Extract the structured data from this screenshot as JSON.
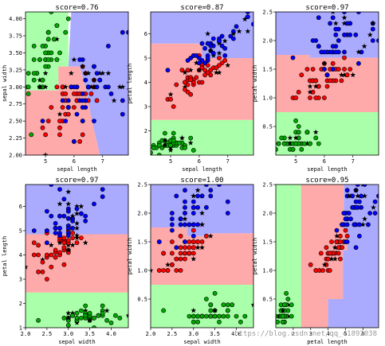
{
  "figure_title": "",
  "watermark": "https://blog.csdn.net/qq_41892038",
  "colors": {
    "red_region": "#ffaaaa",
    "green_region": "#aaffaa",
    "blue_region": "#aaaaff",
    "red_point": "#ff0000",
    "green_point": "#00aa00",
    "blue_point": "#0000ff"
  },
  "chart_data": [
    {
      "type": "scatter",
      "title": "score=0.76",
      "xlabel": "sepal length",
      "ylabel": "sepal width",
      "xlim": [
        4.3,
        7.9
      ],
      "ylim": [
        2.0,
        4.1
      ],
      "xticks": [
        {
          "v": 5,
          "t": "5"
        },
        {
          "v": 6,
          "t": "6"
        },
        {
          "v": 7,
          "t": "7"
        }
      ],
      "yticks": [
        {
          "v": 2.0,
          "t": "2.00"
        },
        {
          "v": 2.25,
          "t": "2.25"
        },
        {
          "v": 2.5,
          "t": "2.50"
        },
        {
          "v": 2.75,
          "t": "2.75"
        },
        {
          "v": 3.0,
          "t": "3.00"
        },
        {
          "v": 3.25,
          "t": "3.25"
        },
        {
          "v": 3.5,
          "t": "3.50"
        },
        {
          "v": 3.75,
          "t": "3.75"
        },
        {
          "v": 4.0,
          "t": "4.00"
        }
      ],
      "regions": [
        {
          "class": "green",
          "polygon": [
            [
              4.3,
              2.95
            ],
            [
              5.45,
              2.95
            ],
            [
              5.45,
              3.3
            ],
            [
              5.8,
              3.3
            ],
            [
              5.8,
              4.1
            ],
            [
              4.3,
              4.1
            ]
          ]
        },
        {
          "class": "blue",
          "polygon": [
            [
              5.8,
              3.3
            ],
            [
              5.9,
              4.1
            ],
            [
              7.9,
              4.1
            ],
            [
              7.9,
              2.0
            ],
            [
              6.9,
              2.0
            ],
            [
              6.6,
              2.55
            ],
            [
              6.45,
              2.9
            ],
            [
              6.2,
              3.3
            ]
          ]
        },
        {
          "class": "red",
          "polygon": [
            [
              4.3,
              2.0
            ],
            [
              6.9,
              2.0
            ],
            [
              6.6,
              2.55
            ],
            [
              6.45,
              2.9
            ],
            [
              6.2,
              3.3
            ],
            [
              5.8,
              3.3
            ],
            [
              5.45,
              3.3
            ],
            [
              5.45,
              2.95
            ],
            [
              4.3,
              2.95
            ]
          ]
        }
      ]
    },
    {
      "type": "scatter",
      "title": "score=0.87",
      "xlabel": "sepal length",
      "ylabel": "petal length",
      "xlim": [
        4.3,
        7.9
      ],
      "ylim": [
        1.0,
        6.9
      ],
      "xticks": [
        {
          "v": 5,
          "t": "5"
        },
        {
          "v": 6,
          "t": "6"
        },
        {
          "v": 7,
          "t": "7"
        }
      ],
      "yticks": [
        {
          "v": 2,
          "t": "2"
        },
        {
          "v": 3,
          "t": "3"
        },
        {
          "v": 4,
          "t": "4"
        },
        {
          "v": 5,
          "t": "5"
        },
        {
          "v": 6,
          "t": "6"
        }
      ],
      "regions": [
        {
          "class": "green",
          "polygon": [
            [
              4.3,
              1.0
            ],
            [
              7.9,
              1.0
            ],
            [
              7.9,
              2.45
            ],
            [
              4.3,
              2.45
            ]
          ]
        },
        {
          "class": "red",
          "polygon": [
            [
              4.3,
              2.45
            ],
            [
              7.9,
              2.45
            ],
            [
              7.9,
              5.0
            ],
            [
              6.1,
              5.0
            ],
            [
              6.1,
              5.6
            ],
            [
              4.3,
              5.6
            ]
          ]
        },
        {
          "class": "blue",
          "polygon": [
            [
              4.3,
              5.6
            ],
            [
              6.1,
              5.6
            ],
            [
              6.1,
              5.0
            ],
            [
              7.9,
              5.0
            ],
            [
              7.9,
              6.9
            ],
            [
              4.3,
              6.9
            ]
          ]
        }
      ]
    },
    {
      "type": "scatter",
      "title": "score=0.97",
      "xlabel": "sepal length",
      "ylabel": "petal width",
      "xlim": [
        4.3,
        7.9
      ],
      "ylim": [
        0.0,
        2.5
      ],
      "xticks": [
        {
          "v": 5,
          "t": "5"
        },
        {
          "v": 6,
          "t": "6"
        },
        {
          "v": 7,
          "t": "7"
        }
      ],
      "yticks": [
        {
          "v": 0.5,
          "t": "0.5"
        },
        {
          "v": 1.0,
          "t": "1.0"
        },
        {
          "v": 1.5,
          "t": "1.5"
        },
        {
          "v": 2.0,
          "t": "2.0"
        },
        {
          "v": 2.5,
          "t": "2.5"
        }
      ],
      "regions": [
        {
          "class": "green",
          "polygon": [
            [
              4.3,
              0.0
            ],
            [
              7.9,
              0.0
            ],
            [
              7.9,
              0.75
            ],
            [
              4.3,
              0.75
            ]
          ]
        },
        {
          "class": "red",
          "polygon": [
            [
              4.3,
              0.75
            ],
            [
              7.9,
              0.75
            ],
            [
              7.9,
              1.7
            ],
            [
              5.5,
              1.7
            ],
            [
              5.5,
              1.75
            ],
            [
              4.3,
              1.75
            ]
          ]
        },
        {
          "class": "blue",
          "polygon": [
            [
              4.3,
              1.75
            ],
            [
              5.5,
              1.75
            ],
            [
              5.5,
              1.7
            ],
            [
              7.9,
              1.7
            ],
            [
              7.9,
              2.5
            ],
            [
              4.3,
              2.5
            ]
          ]
        }
      ]
    },
    {
      "type": "scatter",
      "title": "score=0.97",
      "xlabel": "sepal width",
      "ylabel": "petal length",
      "xlim": [
        2.0,
        4.4
      ],
      "ylim": [
        1.0,
        6.9
      ],
      "xticks": [
        {
          "v": 2.0,
          "t": "2.0"
        },
        {
          "v": 2.5,
          "t": "2.5"
        },
        {
          "v": 3.0,
          "t": "3.0"
        },
        {
          "v": 3.5,
          "t": "3.5"
        },
        {
          "v": 4.0,
          "t": "4.0"
        }
      ],
      "yticks": [
        {
          "v": 1,
          "t": "1"
        },
        {
          "v": 2,
          "t": "2"
        },
        {
          "v": 3,
          "t": "3"
        },
        {
          "v": 4,
          "t": "4"
        },
        {
          "v": 5,
          "t": "5"
        },
        {
          "v": 6,
          "t": "6"
        }
      ],
      "regions": [
        {
          "class": "green",
          "polygon": [
            [
              2.0,
              1.0
            ],
            [
              4.4,
              1.0
            ],
            [
              4.4,
              2.45
            ],
            [
              2.0,
              2.45
            ]
          ]
        },
        {
          "class": "red",
          "polygon": [
            [
              2.0,
              2.45
            ],
            [
              4.4,
              2.45
            ],
            [
              4.4,
              4.85
            ],
            [
              2.0,
              4.85
            ]
          ]
        },
        {
          "class": "blue",
          "polygon": [
            [
              2.0,
              4.85
            ],
            [
              4.4,
              4.85
            ],
            [
              4.4,
              6.9
            ],
            [
              2.0,
              6.9
            ]
          ]
        }
      ]
    },
    {
      "type": "scatter",
      "title": "score=1.00",
      "xlabel": "sepal width",
      "ylabel": "petal width",
      "xlim": [
        2.0,
        4.4
      ],
      "ylim": [
        0.0,
        2.5
      ],
      "xticks": [
        {
          "v": 2.0,
          "t": "2.0"
        },
        {
          "v": 2.5,
          "t": "2.5"
        },
        {
          "v": 3.0,
          "t": "3.0"
        },
        {
          "v": 3.5,
          "t": "3.5"
        },
        {
          "v": 4.0,
          "t": "4.0"
        }
      ],
      "yticks": [
        {
          "v": 0.5,
          "t": "0.5"
        },
        {
          "v": 1.0,
          "t": "1.0"
        },
        {
          "v": 1.5,
          "t": "1.5"
        },
        {
          "v": 2.0,
          "t": "2.0"
        },
        {
          "v": 2.5,
          "t": "2.5"
        }
      ],
      "regions": [
        {
          "class": "green",
          "polygon": [
            [
              2.0,
              0.0
            ],
            [
              4.4,
              0.0
            ],
            [
              4.4,
              0.75
            ],
            [
              2.0,
              0.75
            ]
          ]
        },
        {
          "class": "red",
          "polygon": [
            [
              2.0,
              0.75
            ],
            [
              4.4,
              0.75
            ],
            [
              4.4,
              1.65
            ],
            [
              3.35,
              1.65
            ],
            [
              3.35,
              1.6
            ],
            [
              2.85,
              1.6
            ],
            [
              2.85,
              1.75
            ],
            [
              2.0,
              1.75
            ]
          ]
        },
        {
          "class": "blue",
          "polygon": [
            [
              2.0,
              1.75
            ],
            [
              2.85,
              1.75
            ],
            [
              2.85,
              1.6
            ],
            [
              3.35,
              1.6
            ],
            [
              3.35,
              1.65
            ],
            [
              4.4,
              1.65
            ],
            [
              4.4,
              2.5
            ],
            [
              2.0,
              2.5
            ]
          ]
        }
      ]
    },
    {
      "type": "scatter",
      "title": "score=0.95",
      "xlabel": "petal length",
      "ylabel": "petal width",
      "xlim": [
        1.0,
        6.9
      ],
      "ylim": [
        0.0,
        2.5
      ],
      "xticks": [
        {
          "v": 2,
          "t": "2"
        },
        {
          "v": 3,
          "t": "3"
        },
        {
          "v": 4,
          "t": "4"
        },
        {
          "v": 5,
          "t": "5"
        },
        {
          "v": 6,
          "t": "6"
        }
      ],
      "yticks": [
        {
          "v": 0.5,
          "t": "0.5"
        },
        {
          "v": 1.0,
          "t": "1.0"
        },
        {
          "v": 1.5,
          "t": "1.5"
        },
        {
          "v": 2.0,
          "t": "2.0"
        },
        {
          "v": 2.5,
          "t": "2.5"
        }
      ],
      "regions": [
        {
          "class": "green",
          "polygon": [
            [
              1.0,
              0.0
            ],
            [
              2.45,
              0.0
            ],
            [
              2.45,
              2.5
            ],
            [
              1.0,
              2.5
            ]
          ]
        },
        {
          "class": "red",
          "polygon": [
            [
              2.45,
              0.0
            ],
            [
              4.0,
              0.0
            ],
            [
              4.0,
              0.5
            ],
            [
              4.85,
              0.5
            ],
            [
              4.85,
              1.35
            ],
            [
              5.1,
              1.35
            ],
            [
              5.1,
              1.7
            ],
            [
              4.9,
              1.7
            ],
            [
              4.9,
              2.5
            ],
            [
              2.45,
              2.5
            ]
          ]
        },
        {
          "class": "blue",
          "polygon": [
            [
              4.0,
              0.0
            ],
            [
              6.9,
              0.0
            ],
            [
              6.9,
              2.5
            ],
            [
              4.9,
              2.5
            ],
            [
              4.9,
              1.7
            ],
            [
              5.1,
              1.7
            ],
            [
              5.1,
              1.35
            ],
            [
              4.85,
              1.35
            ],
            [
              4.85,
              0.5
            ],
            [
              4.0,
              0.5
            ]
          ]
        }
      ]
    }
  ]
}
